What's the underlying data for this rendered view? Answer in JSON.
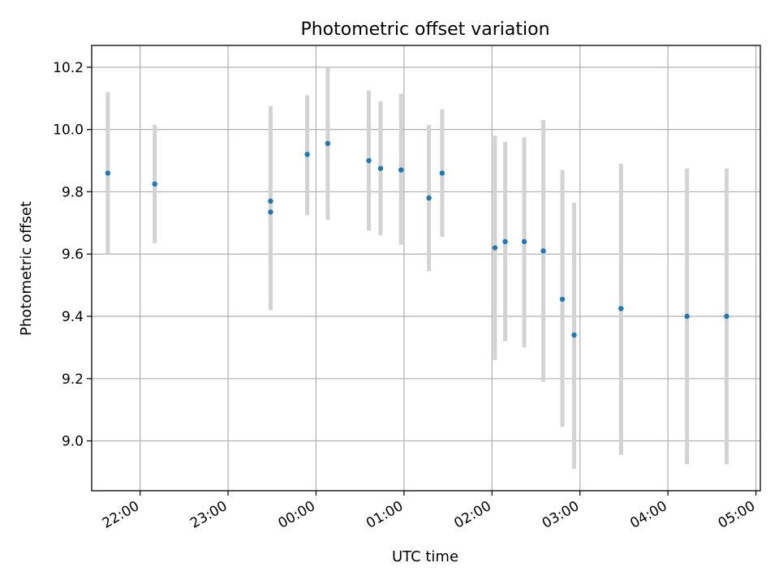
{
  "chart_data": {
    "type": "scatter",
    "title": "Photometric offset variation",
    "xlabel": "UTC time",
    "ylabel": "Photometric offset",
    "x_tick_labels": [
      "22:00",
      "23:00",
      "00:00",
      "01:00",
      "02:00",
      "03:00",
      "04:00",
      "05:00"
    ],
    "y_tick_labels": [
      "9.0",
      "9.2",
      "9.4",
      "9.6",
      "9.8",
      "10.0",
      "10.2"
    ],
    "x_ticks": [
      "22:00",
      "23:00",
      "00:00",
      "01:00",
      "02:00",
      "03:00",
      "04:00",
      "05:00"
    ],
    "y_ticks": [
      9.0,
      9.2,
      9.4,
      9.6,
      9.8,
      10.0,
      10.2
    ],
    "xlim": [
      "21:27",
      "05:03"
    ],
    "ylim": [
      8.84,
      10.27
    ],
    "grid": true,
    "series": [
      {
        "points": [
          {
            "x": "21:38",
            "y": 9.86,
            "err_low": 9.6,
            "err_high": 10.12
          },
          {
            "x": "22:10",
            "y": 9.825,
            "err_low": 9.635,
            "err_high": 10.015
          },
          {
            "x": "23:29",
            "y": 9.77,
            "err_low": 9.465,
            "err_high": 10.075
          },
          {
            "x": "23:29",
            "y": 9.735,
            "err_low": 9.42,
            "err_high": 10.05
          },
          {
            "x": "23:54",
            "y": 9.92,
            "err_low": 9.725,
            "err_high": 10.11
          },
          {
            "x": "00:08",
            "y": 9.955,
            "err_low": 9.71,
            "err_high": 10.2
          },
          {
            "x": "00:36",
            "y": 9.9,
            "err_low": 9.675,
            "err_high": 10.125
          },
          {
            "x": "00:44",
            "y": 9.875,
            "err_low": 9.66,
            "err_high": 10.09
          },
          {
            "x": "00:58",
            "y": 9.87,
            "err_low": 9.63,
            "err_high": 10.115
          },
          {
            "x": "01:17",
            "y": 9.78,
            "err_low": 9.545,
            "err_high": 10.015
          },
          {
            "x": "01:26",
            "y": 9.86,
            "err_low": 9.655,
            "err_high": 10.065
          },
          {
            "x": "02:02",
            "y": 9.62,
            "err_low": 9.26,
            "err_high": 9.98
          },
          {
            "x": "02:09",
            "y": 9.64,
            "err_low": 9.32,
            "err_high": 9.96
          },
          {
            "x": "02:22",
            "y": 9.64,
            "err_low": 9.3,
            "err_high": 9.975
          },
          {
            "x": "02:35",
            "y": 9.61,
            "err_low": 9.19,
            "err_high": 10.03
          },
          {
            "x": "02:48",
            "y": 9.455,
            "err_low": 9.045,
            "err_high": 9.87
          },
          {
            "x": "02:56",
            "y": 9.34,
            "err_low": 8.91,
            "err_high": 9.765
          },
          {
            "x": "03:28",
            "y": 9.425,
            "err_low": 8.955,
            "err_high": 9.89
          },
          {
            "x": "04:13",
            "y": 9.4,
            "err_low": 8.925,
            "err_high": 9.875
          },
          {
            "x": "04:40",
            "y": 9.4,
            "err_low": 8.925,
            "err_high": 9.875
          }
        ]
      }
    ],
    "colors": {
      "point": "#1f77b4",
      "errorbar": "#d3d3d3",
      "grid": "#b0b0b0"
    }
  }
}
